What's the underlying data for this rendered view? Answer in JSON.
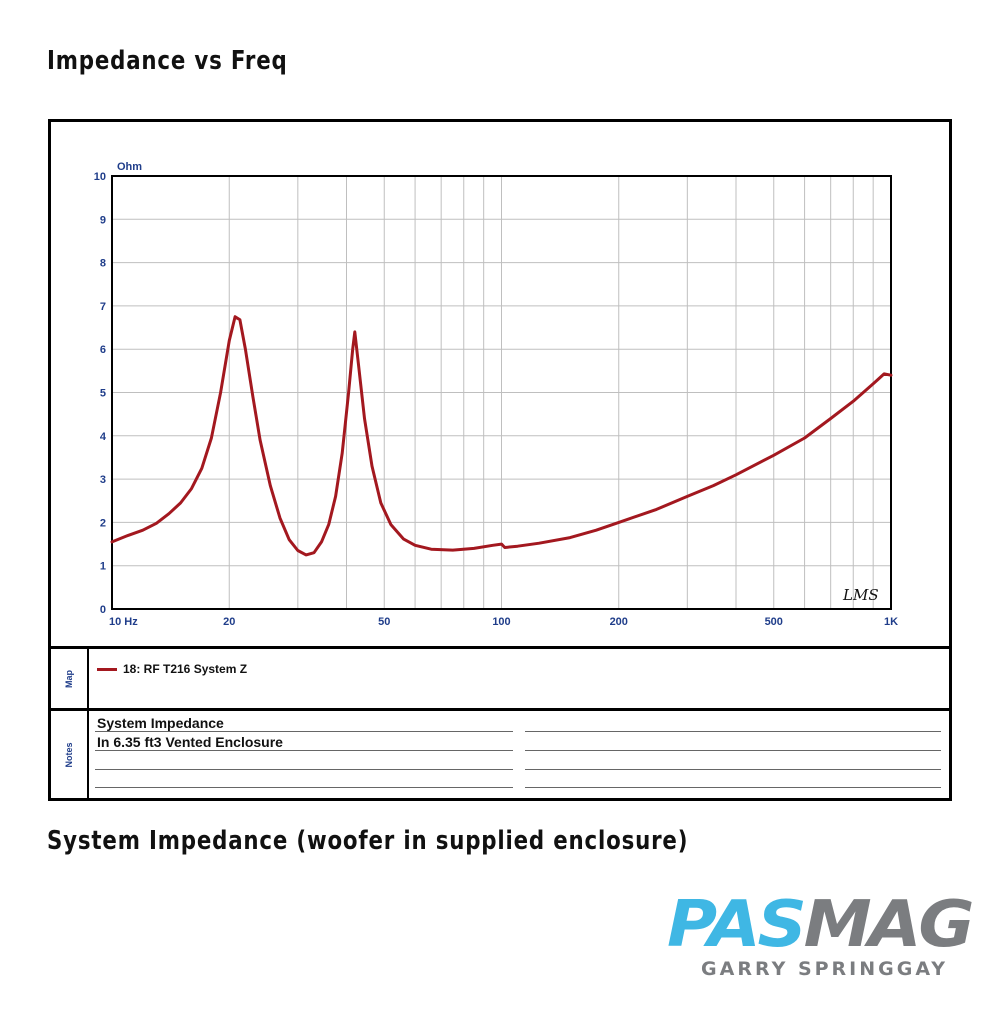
{
  "page": {
    "title": "Impedance vs Freq",
    "caption": "System Impedance (woofer in supplied enclosure)"
  },
  "chart_data": {
    "type": "line",
    "title": "",
    "xlabel": "",
    "ylabel": "Ohm",
    "xscale": "log",
    "xlim": [
      10,
      1000
    ],
    "ylim": [
      0,
      10
    ],
    "grid": true,
    "x_tick_values": [
      10,
      20,
      50,
      100,
      200,
      500,
      1000
    ],
    "x_tick_labels": [
      "10 Hz",
      "20",
      "50",
      "100",
      "200",
      "500",
      "1K"
    ],
    "y_tick_values": [
      0,
      1,
      2,
      3,
      4,
      5,
      6,
      7,
      8,
      9,
      10
    ],
    "y_tick_labels": [
      "0",
      "1",
      "2",
      "3",
      "4",
      "5",
      "6",
      "7",
      "8",
      "9",
      "10"
    ],
    "legend_placement": "below",
    "series": [
      {
        "name": "18: RF T216  System Z",
        "color": "#a3181f",
        "points": [
          [
            10,
            1.55
          ],
          [
            11,
            1.7
          ],
          [
            12,
            1.82
          ],
          [
            13,
            1.98
          ],
          [
            14,
            2.2
          ],
          [
            15,
            2.45
          ],
          [
            16,
            2.78
          ],
          [
            17,
            3.25
          ],
          [
            18,
            3.95
          ],
          [
            19,
            5.0
          ],
          [
            20,
            6.2
          ],
          [
            20.7,
            6.75
          ],
          [
            21.3,
            6.68
          ],
          [
            22,
            6.0
          ],
          [
            23,
            4.9
          ],
          [
            24,
            3.9
          ],
          [
            25.5,
            2.85
          ],
          [
            27,
            2.1
          ],
          [
            28.5,
            1.6
          ],
          [
            30,
            1.35
          ],
          [
            31.5,
            1.25
          ],
          [
            33,
            1.3
          ],
          [
            34.5,
            1.55
          ],
          [
            36,
            1.95
          ],
          [
            37.5,
            2.6
          ],
          [
            39,
            3.6
          ],
          [
            40.5,
            5.0
          ],
          [
            41.5,
            6.0
          ],
          [
            42,
            6.4
          ],
          [
            43,
            5.6
          ],
          [
            44.5,
            4.4
          ],
          [
            46.5,
            3.3
          ],
          [
            49,
            2.45
          ],
          [
            52,
            1.95
          ],
          [
            56,
            1.62
          ],
          [
            60,
            1.47
          ],
          [
            66,
            1.38
          ],
          [
            75,
            1.36
          ],
          [
            85,
            1.4
          ],
          [
            95,
            1.47
          ],
          [
            100,
            1.5
          ],
          [
            102,
            1.42
          ],
          [
            110,
            1.45
          ],
          [
            125,
            1.52
          ],
          [
            150,
            1.65
          ],
          [
            175,
            1.82
          ],
          [
            200,
            2.0
          ],
          [
            250,
            2.3
          ],
          [
            300,
            2.6
          ],
          [
            350,
            2.85
          ],
          [
            400,
            3.1
          ],
          [
            500,
            3.55
          ],
          [
            600,
            3.95
          ],
          [
            700,
            4.4
          ],
          [
            800,
            4.8
          ],
          [
            900,
            5.2
          ],
          [
            960,
            5.43
          ],
          [
            1000,
            5.4
          ]
        ]
      }
    ],
    "annotations": [
      "LMS"
    ]
  },
  "map": {
    "tab_label": "Map"
  },
  "notes": {
    "tab_label": "Notes",
    "lines": [
      "System Impedance",
      "In 6.35 ft3 Vented Enclosure"
    ]
  },
  "branding": {
    "logo_part_1": "PAS",
    "logo_part_2": "MAG",
    "byline": "GARRY SPRINGGAY",
    "logo_colors": [
      "#3fb7e4",
      "#7b7d80"
    ]
  }
}
